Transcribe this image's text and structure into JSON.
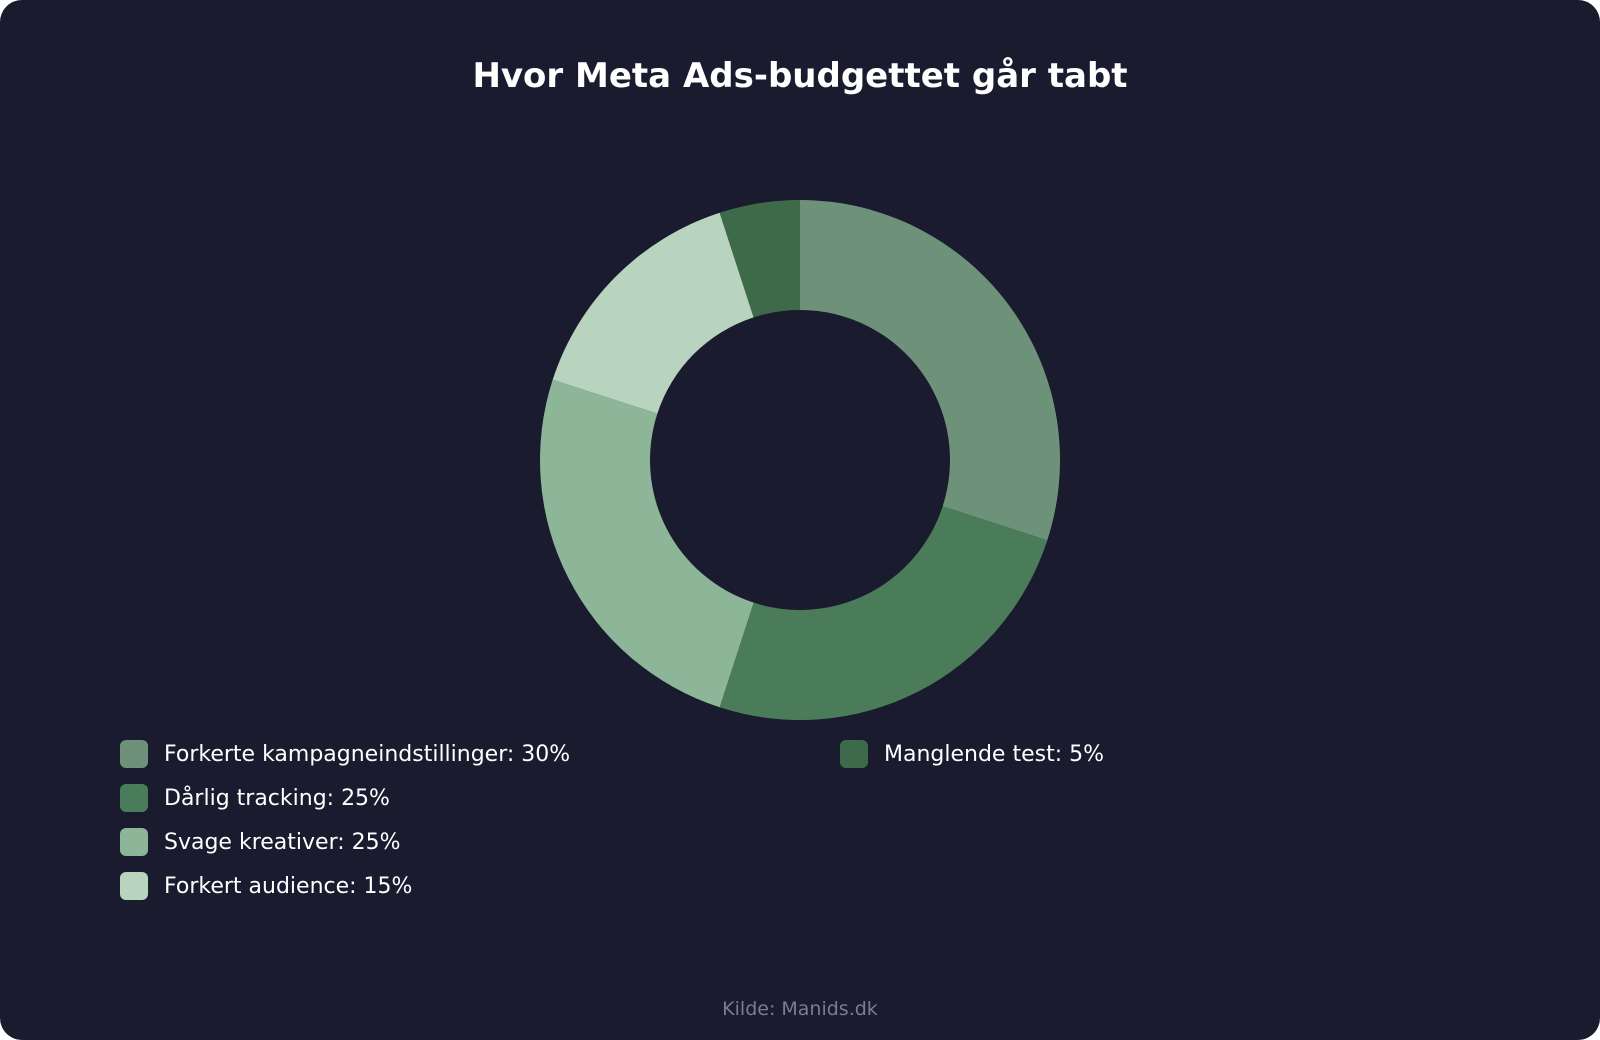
{
  "chart_data": {
    "type": "pie",
    "variant": "donut",
    "title": "Hvor Meta Ads-budgettet går tabt",
    "categories": [
      "Forkerte kampagneindstillinger",
      "Dårlig tracking",
      "Svage kreativer",
      "Forkert audience",
      "Manglende test"
    ],
    "values": [
      30,
      25,
      25,
      15,
      5
    ],
    "unit": "%",
    "colors": [
      "#6e9279",
      "#4a7c59",
      "#8db598",
      "#b8d4bf",
      "#3d6b4a"
    ],
    "legend": {
      "placement": "bottom",
      "labels": [
        "Forkerte kampagneindstillinger: 30%",
        "Dårlig tracking: 25%",
        "Svage kreativer: 25%",
        "Forkert audience: 15%",
        "Manglende test: 5%"
      ]
    },
    "source": "Kilde: Manids.dk"
  },
  "colors": {
    "background": "#1a1b2f",
    "text": "#ffffff",
    "muted_text": "#7b7d8f"
  }
}
